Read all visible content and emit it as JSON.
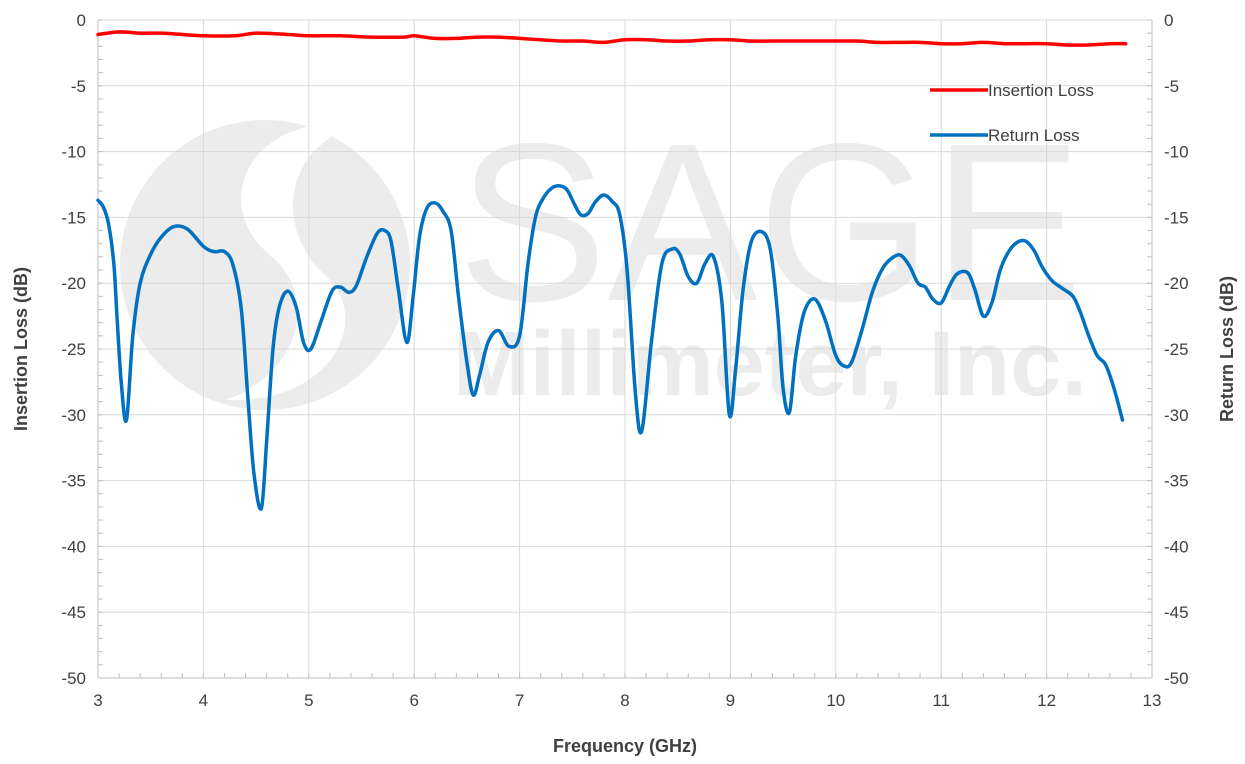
{
  "chart_data": {
    "type": "line",
    "xlabel": "Frequency (GHz)",
    "ylabel": "Insertion Loss (dB)",
    "y2label": "Return Loss (dB)",
    "xlim": [
      3,
      13
    ],
    "ylim": [
      -50,
      0
    ],
    "y2lim": [
      -50,
      0
    ],
    "xticks": [
      "3",
      "4",
      "5",
      "6",
      "7",
      "8",
      "9",
      "10",
      "11",
      "12",
      "13"
    ],
    "yticks": [
      "0",
      "-5",
      "-10",
      "-15",
      "-20",
      "-25",
      "-30",
      "-35",
      "-40",
      "-45",
      "-50"
    ],
    "y2ticks": [
      "0",
      "-5",
      "-10",
      "-15",
      "-20",
      "-25",
      "-30",
      "-35",
      "-40",
      "-45",
      "-50"
    ],
    "grid": true,
    "legend_position": "top-right",
    "watermark": {
      "line1": "SAGE",
      "line2": "Millimeter, Inc."
    },
    "series": [
      {
        "name": "Insertion Loss",
        "color": "#ff0000",
        "axis": "left",
        "x": [
          3.0,
          3.2,
          3.4,
          3.6,
          3.8,
          4.0,
          4.3,
          4.5,
          4.8,
          5.0,
          5.3,
          5.6,
          5.9,
          6.0,
          6.2,
          6.4,
          6.6,
          6.8,
          7.0,
          7.2,
          7.4,
          7.6,
          7.8,
          8.0,
          8.2,
          8.4,
          8.6,
          8.8,
          9.0,
          9.2,
          9.4,
          9.6,
          9.8,
          10.0,
          10.2,
          10.4,
          10.6,
          10.8,
          11.0,
          11.2,
          11.4,
          11.6,
          11.8,
          12.0,
          12.2,
          12.4,
          12.6,
          12.75
        ],
        "y": [
          -1.1,
          -0.9,
          -1.0,
          -1.0,
          -1.1,
          -1.2,
          -1.2,
          -1.0,
          -1.1,
          -1.2,
          -1.2,
          -1.3,
          -1.3,
          -1.2,
          -1.4,
          -1.4,
          -1.3,
          -1.3,
          -1.4,
          -1.5,
          -1.6,
          -1.6,
          -1.7,
          -1.5,
          -1.5,
          -1.6,
          -1.6,
          -1.5,
          -1.5,
          -1.6,
          -1.6,
          -1.6,
          -1.6,
          -1.6,
          -1.6,
          -1.7,
          -1.7,
          -1.7,
          -1.8,
          -1.8,
          -1.7,
          -1.8,
          -1.8,
          -1.8,
          -1.9,
          -1.9,
          -1.8,
          -1.8
        ]
      },
      {
        "name": "Return Loss",
        "color": "#0070c0",
        "axis": "right",
        "x": [
          3.0,
          3.05,
          3.1,
          3.15,
          3.18,
          3.22,
          3.27,
          3.33,
          3.4,
          3.5,
          3.6,
          3.72,
          3.85,
          4.0,
          4.1,
          4.2,
          4.28,
          4.36,
          4.42,
          4.48,
          4.55,
          4.6,
          4.66,
          4.72,
          4.8,
          4.88,
          4.95,
          5.02,
          5.12,
          5.22,
          5.3,
          5.38,
          5.45,
          5.55,
          5.65,
          5.72,
          5.78,
          5.85,
          5.93,
          5.99,
          6.05,
          6.12,
          6.2,
          6.27,
          6.35,
          6.42,
          6.5,
          6.56,
          6.62,
          6.7,
          6.8,
          6.9,
          7.0,
          7.08,
          7.15,
          7.22,
          7.3,
          7.38,
          7.45,
          7.52,
          7.58,
          7.65,
          7.72,
          7.8,
          7.88,
          7.95,
          8.02,
          8.1,
          8.16,
          8.25,
          8.35,
          8.45,
          8.52,
          8.6,
          8.68,
          8.76,
          8.84,
          8.92,
          8.99,
          9.05,
          9.12,
          9.2,
          9.3,
          9.38,
          9.45,
          9.5,
          9.56,
          9.62,
          9.7,
          9.8,
          9.9,
          10.0,
          10.08,
          10.15,
          10.25,
          10.35,
          10.45,
          10.55,
          10.62,
          10.7,
          10.78,
          10.85,
          10.92,
          11.0,
          11.08,
          11.15,
          11.25,
          11.32,
          11.4,
          11.48,
          11.56,
          11.64,
          11.72,
          11.8,
          11.88,
          11.96,
          12.05,
          12.15,
          12.25,
          12.32,
          12.4,
          12.48,
          12.56,
          12.64,
          12.72
        ],
        "y": [
          -13.7,
          -14.2,
          -15.5,
          -18.5,
          -22.5,
          -27.5,
          -30.4,
          -24.0,
          -20.0,
          -17.8,
          -16.5,
          -15.7,
          -15.9,
          -17.2,
          -17.6,
          -17.6,
          -18.6,
          -22.0,
          -28.5,
          -34.5,
          -37.1,
          -32.0,
          -25.0,
          -21.8,
          -20.6,
          -21.8,
          -24.5,
          -25.0,
          -22.8,
          -20.6,
          -20.3,
          -20.7,
          -20.2,
          -18.0,
          -16.2,
          -16.0,
          -16.8,
          -20.5,
          -24.5,
          -21.0,
          -16.5,
          -14.3,
          -13.9,
          -14.5,
          -16.0,
          -21.0,
          -26.0,
          -28.5,
          -27.0,
          -24.5,
          -23.6,
          -24.8,
          -24.0,
          -18.5,
          -15.0,
          -13.6,
          -12.8,
          -12.6,
          -12.9,
          -14.0,
          -14.8,
          -14.7,
          -13.8,
          -13.3,
          -13.8,
          -14.8,
          -19.0,
          -28.5,
          -31.2,
          -24.5,
          -18.5,
          -17.4,
          -17.8,
          -19.5,
          -20.0,
          -18.5,
          -18.0,
          -21.5,
          -30.0,
          -26.5,
          -20.5,
          -16.8,
          -16.1,
          -17.5,
          -22.5,
          -28.0,
          -29.8,
          -25.5,
          -22.2,
          -21.2,
          -22.8,
          -25.5,
          -26.3,
          -26.0,
          -23.5,
          -20.6,
          -18.8,
          -18.0,
          -17.9,
          -18.7,
          -20.0,
          -20.3,
          -21.2,
          -21.5,
          -20.2,
          -19.3,
          -19.2,
          -20.5,
          -22.5,
          -21.5,
          -19.0,
          -17.6,
          -16.9,
          -16.8,
          -17.5,
          -18.8,
          -19.8,
          -20.4,
          -21.0,
          -22.2,
          -24.0,
          -25.5,
          -26.2,
          -28.0,
          -30.4
        ]
      }
    ]
  }
}
